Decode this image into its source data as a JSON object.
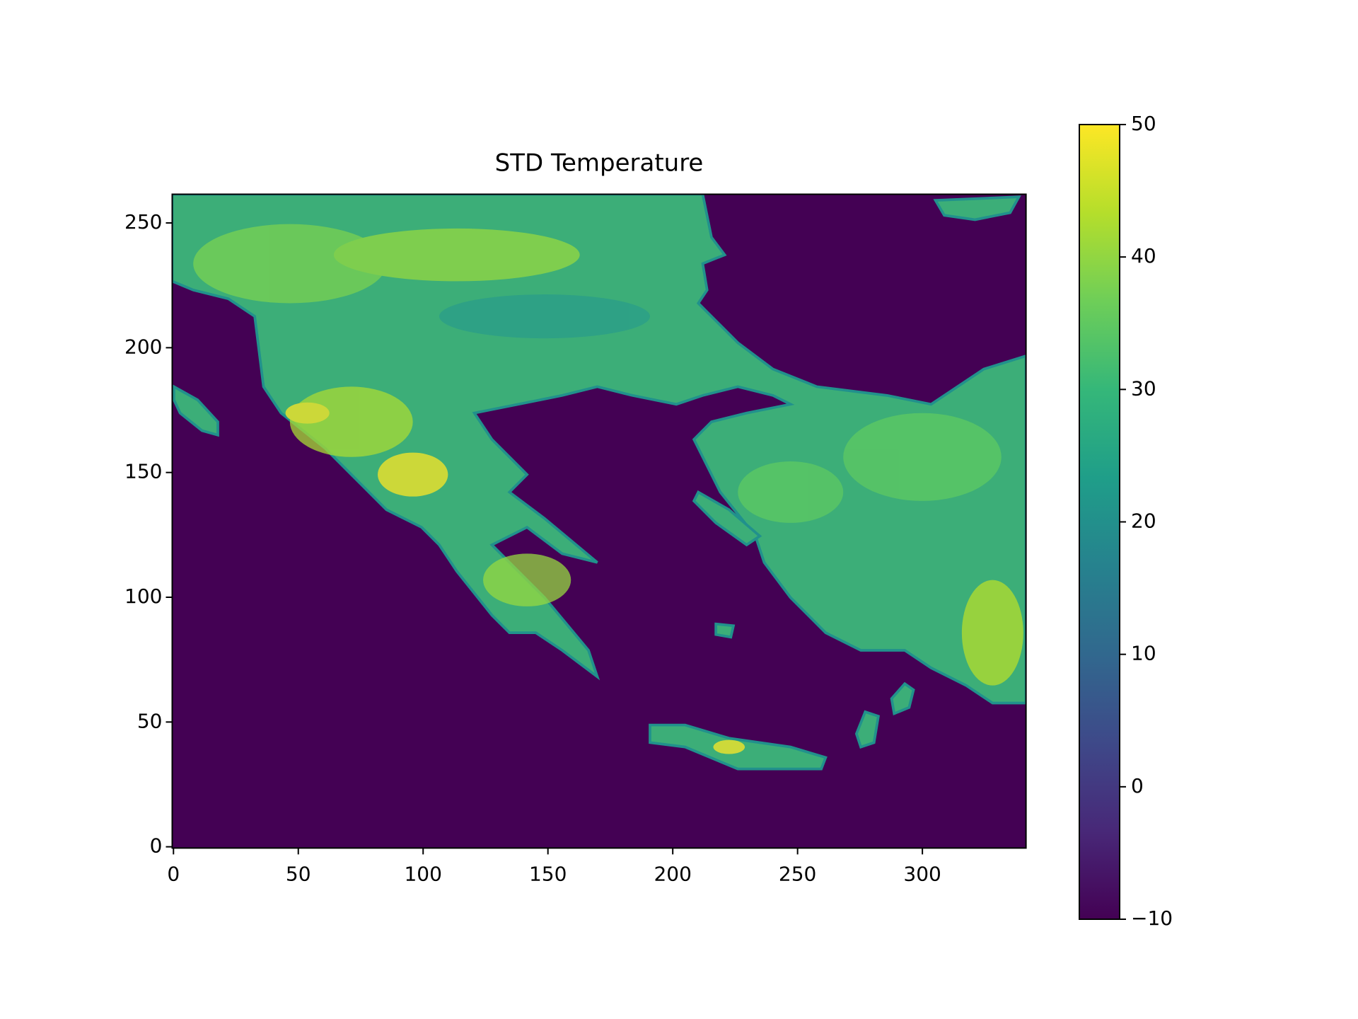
{
  "chart_data": {
    "type": "heatmap",
    "title": "STD Temperature",
    "xlim": [
      -0.5,
      341.5
    ],
    "ylim": [
      -0.5,
      261.5
    ],
    "xticks": [
      0,
      50,
      100,
      150,
      200,
      250,
      300
    ],
    "yticks": [
      0,
      50,
      100,
      150,
      200,
      250
    ],
    "cmap": "viridis",
    "clim": [
      -10,
      50
    ],
    "cticks": [
      {
        "value": -10,
        "label": "−10"
      },
      0,
      10,
      20,
      30,
      40,
      50
    ]
  }
}
